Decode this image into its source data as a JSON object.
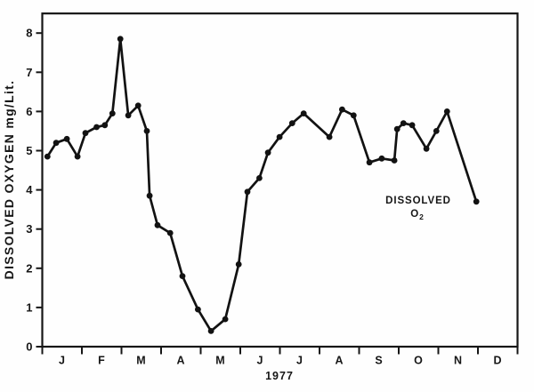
{
  "page": {
    "background": "#ffffff",
    "ink_color": "#161616"
  },
  "chart_data": {
    "type": "line",
    "title": "",
    "ylabel": "DISSOLVED OXYGEN mg/Lit.",
    "year_label": "1977",
    "legend": {
      "line1": "DISSOLVED",
      "line2_base": "O",
      "line2_sub": "2",
      "position": "inside-lower-right-of-center"
    },
    "month_labels": [
      "J",
      "F",
      "M",
      "A",
      "M",
      "J",
      "J",
      "A",
      "S",
      "O",
      "N",
      "D"
    ],
    "yticks": [
      0,
      1,
      2,
      3,
      4,
      5,
      6,
      7,
      8
    ],
    "ylim": [
      0,
      8.5
    ],
    "xlim_months": [
      0,
      12
    ],
    "grid": false,
    "marker": "filled-circle",
    "line_color": "#121212",
    "series": [
      {
        "name": "Dissolved O2 (mg/Lit), 1977",
        "points": [
          [
            0.13,
            4.85
          ],
          [
            0.35,
            5.2
          ],
          [
            0.62,
            5.3
          ],
          [
            0.89,
            4.85
          ],
          [
            1.09,
            5.45
          ],
          [
            1.37,
            5.6
          ],
          [
            1.58,
            5.65
          ],
          [
            1.77,
            5.95
          ],
          [
            1.97,
            7.85
          ],
          [
            2.17,
            5.9
          ],
          [
            2.42,
            6.15
          ],
          [
            2.64,
            5.5
          ],
          [
            2.71,
            3.85
          ],
          [
            2.91,
            3.1
          ],
          [
            3.23,
            2.9
          ],
          [
            3.54,
            1.8
          ],
          [
            3.93,
            0.95
          ],
          [
            4.26,
            0.4
          ],
          [
            4.62,
            0.7
          ],
          [
            4.96,
            2.1
          ],
          [
            5.18,
            3.95
          ],
          [
            5.48,
            4.3
          ],
          [
            5.7,
            4.95
          ],
          [
            5.99,
            5.35
          ],
          [
            6.31,
            5.7
          ],
          [
            6.6,
            5.95
          ],
          [
            7.25,
            5.35
          ],
          [
            7.57,
            6.05
          ],
          [
            7.86,
            5.9
          ],
          [
            8.26,
            4.7
          ],
          [
            8.57,
            4.8
          ],
          [
            8.89,
            4.75
          ],
          [
            8.96,
            5.55
          ],
          [
            9.12,
            5.7
          ],
          [
            9.34,
            5.65
          ],
          [
            9.7,
            5.05
          ],
          [
            9.95,
            5.5
          ],
          [
            10.22,
            6.0
          ],
          [
            10.96,
            3.7
          ]
        ]
      }
    ]
  }
}
